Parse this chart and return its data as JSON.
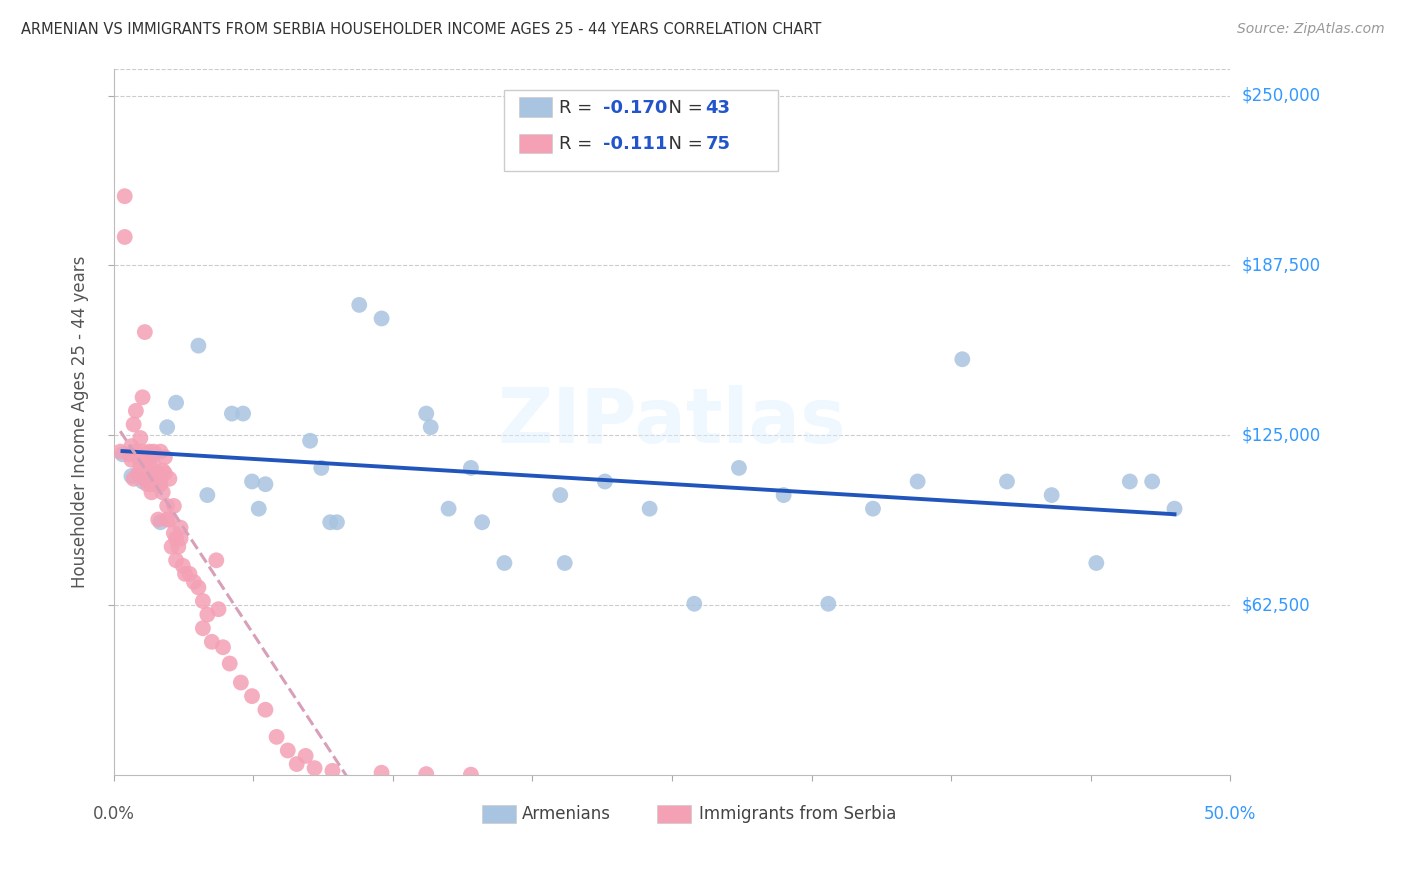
{
  "title": "ARMENIAN VS IMMIGRANTS FROM SERBIA HOUSEHOLDER INCOME AGES 25 - 44 YEARS CORRELATION CHART",
  "source": "Source: ZipAtlas.com",
  "ylabel": "Householder Income Ages 25 - 44 years",
  "xlim": [
    0.0,
    0.5
  ],
  "ylim": [
    0,
    260000
  ],
  "yticks": [
    62500,
    125000,
    187500,
    250000
  ],
  "ytick_labels": [
    "$62,500",
    "$125,000",
    "$187,500",
    "$250,000"
  ],
  "grid_color": "#cccccc",
  "background_color": "#ffffff",
  "armenian_color": "#a8c4e0",
  "serbia_color": "#f4a0b5",
  "armenian_line_color": "#2255bb",
  "serbia_line_color": "#d8a0b8",
  "watermark": "ZIPatlas",
  "armenian_r": -0.17,
  "armenian_n": 43,
  "serbia_r": -0.111,
  "serbia_n": 75,
  "armenian_x": [
    0.004,
    0.008,
    0.013,
    0.018,
    0.021,
    0.024,
    0.028,
    0.038,
    0.042,
    0.053,
    0.058,
    0.062,
    0.065,
    0.068,
    0.088,
    0.093,
    0.097,
    0.1,
    0.11,
    0.12,
    0.14,
    0.142,
    0.15,
    0.16,
    0.165,
    0.175,
    0.2,
    0.202,
    0.22,
    0.24,
    0.26,
    0.28,
    0.3,
    0.32,
    0.34,
    0.36,
    0.38,
    0.4,
    0.42,
    0.44,
    0.455,
    0.465,
    0.475
  ],
  "armenian_y": [
    118000,
    110000,
    108000,
    118000,
    93000,
    128000,
    137000,
    158000,
    103000,
    133000,
    133000,
    108000,
    98000,
    107000,
    123000,
    113000,
    93000,
    93000,
    173000,
    168000,
    133000,
    128000,
    98000,
    113000,
    93000,
    78000,
    103000,
    78000,
    108000,
    98000,
    63000,
    113000,
    103000,
    63000,
    98000,
    108000,
    153000,
    108000,
    103000,
    78000,
    108000,
    108000,
    98000
  ],
  "serbia_x": [
    0.003,
    0.005,
    0.005,
    0.007,
    0.008,
    0.008,
    0.009,
    0.009,
    0.01,
    0.01,
    0.011,
    0.011,
    0.012,
    0.012,
    0.013,
    0.013,
    0.014,
    0.014,
    0.014,
    0.015,
    0.015,
    0.016,
    0.016,
    0.017,
    0.017,
    0.017,
    0.018,
    0.018,
    0.019,
    0.019,
    0.02,
    0.02,
    0.021,
    0.021,
    0.022,
    0.022,
    0.023,
    0.023,
    0.024,
    0.024,
    0.025,
    0.025,
    0.026,
    0.027,
    0.027,
    0.028,
    0.028,
    0.029,
    0.03,
    0.03,
    0.031,
    0.032,
    0.034,
    0.036,
    0.038,
    0.04,
    0.04,
    0.042,
    0.044,
    0.046,
    0.047,
    0.049,
    0.052,
    0.057,
    0.062,
    0.068,
    0.073,
    0.078,
    0.082,
    0.086,
    0.09,
    0.098,
    0.12,
    0.14,
    0.16
  ],
  "serbia_y": [
    119000,
    198000,
    213000,
    118000,
    116000,
    121000,
    109000,
    129000,
    119000,
    134000,
    111000,
    117000,
    114000,
    124000,
    119000,
    139000,
    109000,
    114000,
    163000,
    111000,
    107000,
    114000,
    119000,
    107000,
    109000,
    104000,
    114000,
    119000,
    107000,
    111000,
    107000,
    94000,
    107000,
    119000,
    112000,
    104000,
    111000,
    117000,
    99000,
    94000,
    109000,
    94000,
    84000,
    99000,
    89000,
    87000,
    79000,
    84000,
    91000,
    87000,
    77000,
    74000,
    74000,
    71000,
    69000,
    64000,
    54000,
    59000,
    49000,
    79000,
    61000,
    47000,
    41000,
    34000,
    29000,
    24000,
    14000,
    9000,
    4000,
    7000,
    2500,
    1500,
    800,
    300,
    100
  ]
}
